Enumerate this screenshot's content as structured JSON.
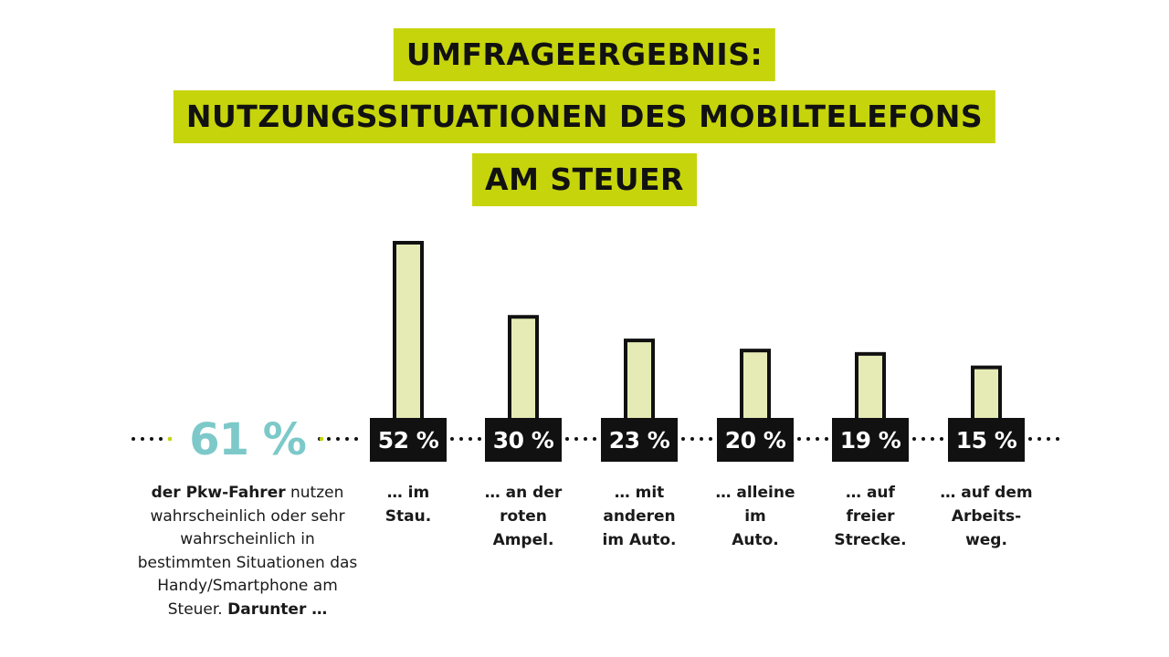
{
  "title": {
    "line1": "UMFRAGEERGEBNIS:",
    "line2": "NUTZUNGSSITUATIONEN DES MOBILTELEFONS",
    "line3": "AM STEUER"
  },
  "intro": {
    "percent": "61 %",
    "text_strong_start": "der Pkw-Fahrer",
    "text_middle": " nutzen wahrscheinlich oder sehr wahrscheinlich in bestimmten Situationen das Handy/Smartphone am Steuer. ",
    "text_strong_end": "Darunter …"
  },
  "colors": {
    "accent": "#c6d40b",
    "highlight": "#7dc9c9",
    "bar_fill": "#e6ebb5",
    "bar_stroke": "#111111",
    "label_box": "#111111"
  },
  "chart_data": {
    "type": "bar",
    "categories": [
      "… im Stau.",
      "… an der roten Ampel.",
      "… mit anderen im Auto.",
      "… alleine im Auto.",
      "… auf freier Strecke.",
      "… auf dem Arbeits-weg."
    ],
    "values": [
      52,
      30,
      23,
      20,
      19,
      15
    ],
    "value_labels": [
      "52 %",
      "30 %",
      "23 %",
      "20 %",
      "19 %",
      "15 %"
    ],
    "category_labels_display": [
      "… im\nStau.",
      "… an der\nroten\nAmpel.",
      "… mit\nanderen\nim Auto.",
      "… alleine\nim\nAuto.",
      "… auf\nfreier\nStrecke.",
      "… auf dem\nArbeits-\nweg."
    ],
    "unit": "%",
    "ylim": [
      0,
      52
    ],
    "grid": false
  }
}
